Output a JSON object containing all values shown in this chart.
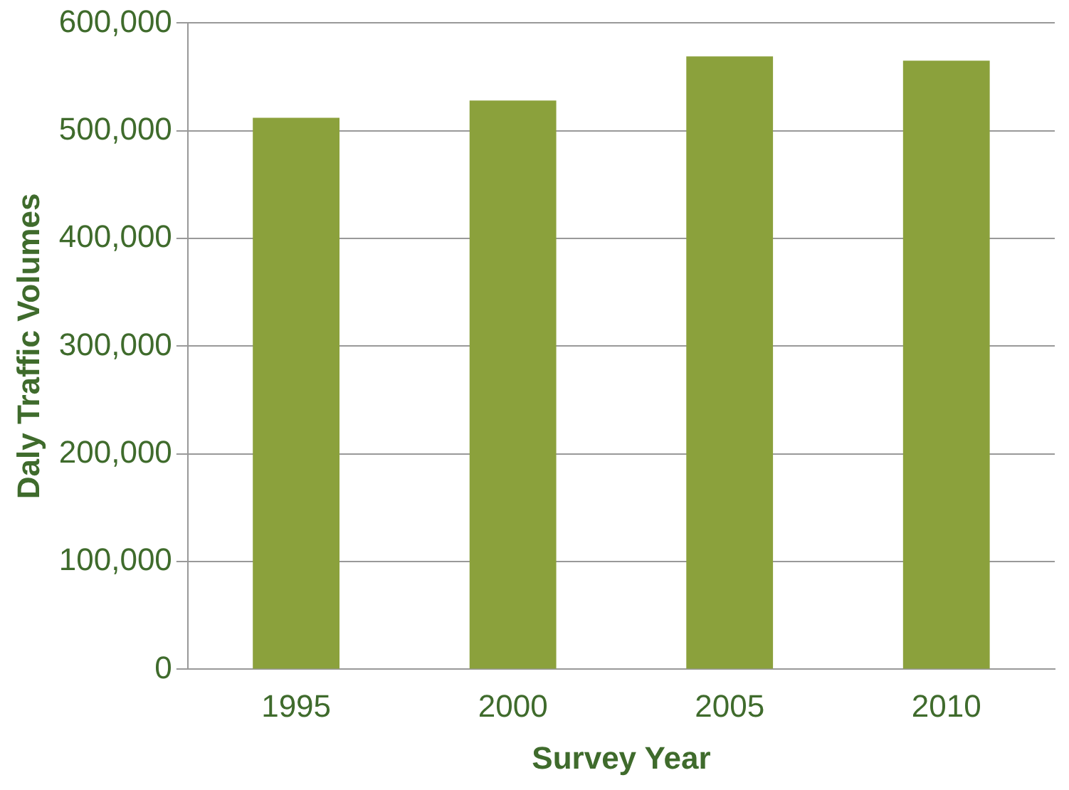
{
  "chart_data": {
    "type": "bar",
    "xlabel": "Survey Year",
    "ylabel": "Daly Traffic Volumes",
    "categories": [
      "1995",
      "2000",
      "2005",
      "2010"
    ],
    "values": [
      512000,
      528000,
      569000,
      565000
    ],
    "color": "#8ba13c",
    "ylim": [
      0,
      600000
    ],
    "yticks": [
      {
        "value": 0,
        "label": "0"
      },
      {
        "value": 100000,
        "label": "100,000"
      },
      {
        "value": 200000,
        "label": "200,000"
      },
      {
        "value": 300000,
        "label": "300,000"
      },
      {
        "value": 400000,
        "label": "400,000"
      },
      {
        "value": 500000,
        "label": "500,000"
      },
      {
        "value": 600000,
        "label": "600,000"
      }
    ],
    "grid": "y",
    "legend": false
  }
}
